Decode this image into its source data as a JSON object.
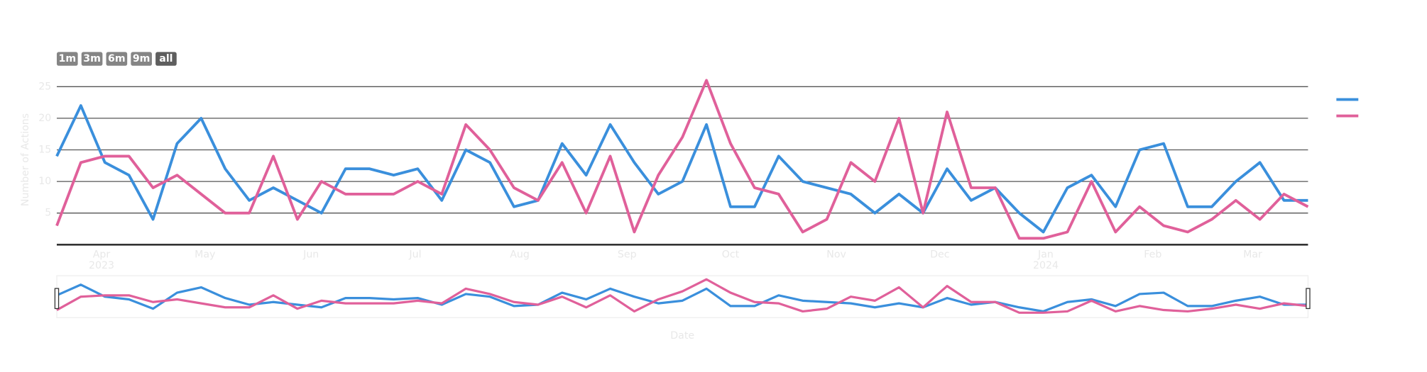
{
  "chart_data": {
    "type": "line",
    "buttons": [
      "1m",
      "3m",
      "6m",
      "9m",
      "all"
    ],
    "y_label": "Number of Actions",
    "x_label": "Date",
    "ylim": [
      0,
      26
    ],
    "yticks": [
      5,
      10,
      15,
      20,
      25
    ],
    "xlim": [
      0,
      52
    ],
    "xticks": [
      {
        "value": 1.86,
        "label": "Apr 2023"
      },
      {
        "value": 6.16,
        "label": "May"
      },
      {
        "value": 10.57,
        "label": "Jun"
      },
      {
        "value": 14.9,
        "label": "Jul"
      },
      {
        "value": 19.24,
        "label": "Aug"
      },
      {
        "value": 23.7,
        "label": "Sep"
      },
      {
        "value": 28.0,
        "label": "Oct"
      },
      {
        "value": 32.4,
        "label": "Nov"
      },
      {
        "value": 36.7,
        "label": "Dec"
      },
      {
        "value": 41.1,
        "label": "Jan 2024"
      },
      {
        "value": 45.55,
        "label": "Feb"
      },
      {
        "value": 49.7,
        "label": "Mar"
      }
    ],
    "grid": true,
    "legend": "right",
    "range_slider": true,
    "series": [
      {
        "color": "#3a8fdc",
        "values": [
          14,
          22,
          13,
          11,
          4,
          16,
          20,
          12,
          7,
          9,
          7,
          5,
          12,
          12,
          11,
          12,
          7,
          15,
          13,
          6,
          7,
          16,
          11,
          19,
          13,
          8,
          10,
          19,
          6,
          6,
          14,
          10,
          9,
          8,
          5,
          8,
          5,
          12,
          7,
          9,
          5,
          2,
          9,
          11,
          6,
          15,
          16,
          6,
          6,
          10,
          13,
          7,
          7
        ]
      },
      {
        "color": "#e0609a",
        "values": [
          3,
          13,
          14,
          14,
          9,
          11,
          8,
          5,
          5,
          14,
          4,
          10,
          8,
          8,
          8,
          10,
          8,
          19,
          15,
          9,
          7,
          13,
          5,
          14,
          2,
          11,
          17,
          26,
          16,
          9,
          8,
          2,
          4,
          13,
          10,
          20,
          5,
          21,
          9,
          9,
          1,
          1,
          2,
          10,
          2,
          6,
          3,
          2,
          4,
          7,
          4,
          8,
          6
        ]
      }
    ]
  }
}
